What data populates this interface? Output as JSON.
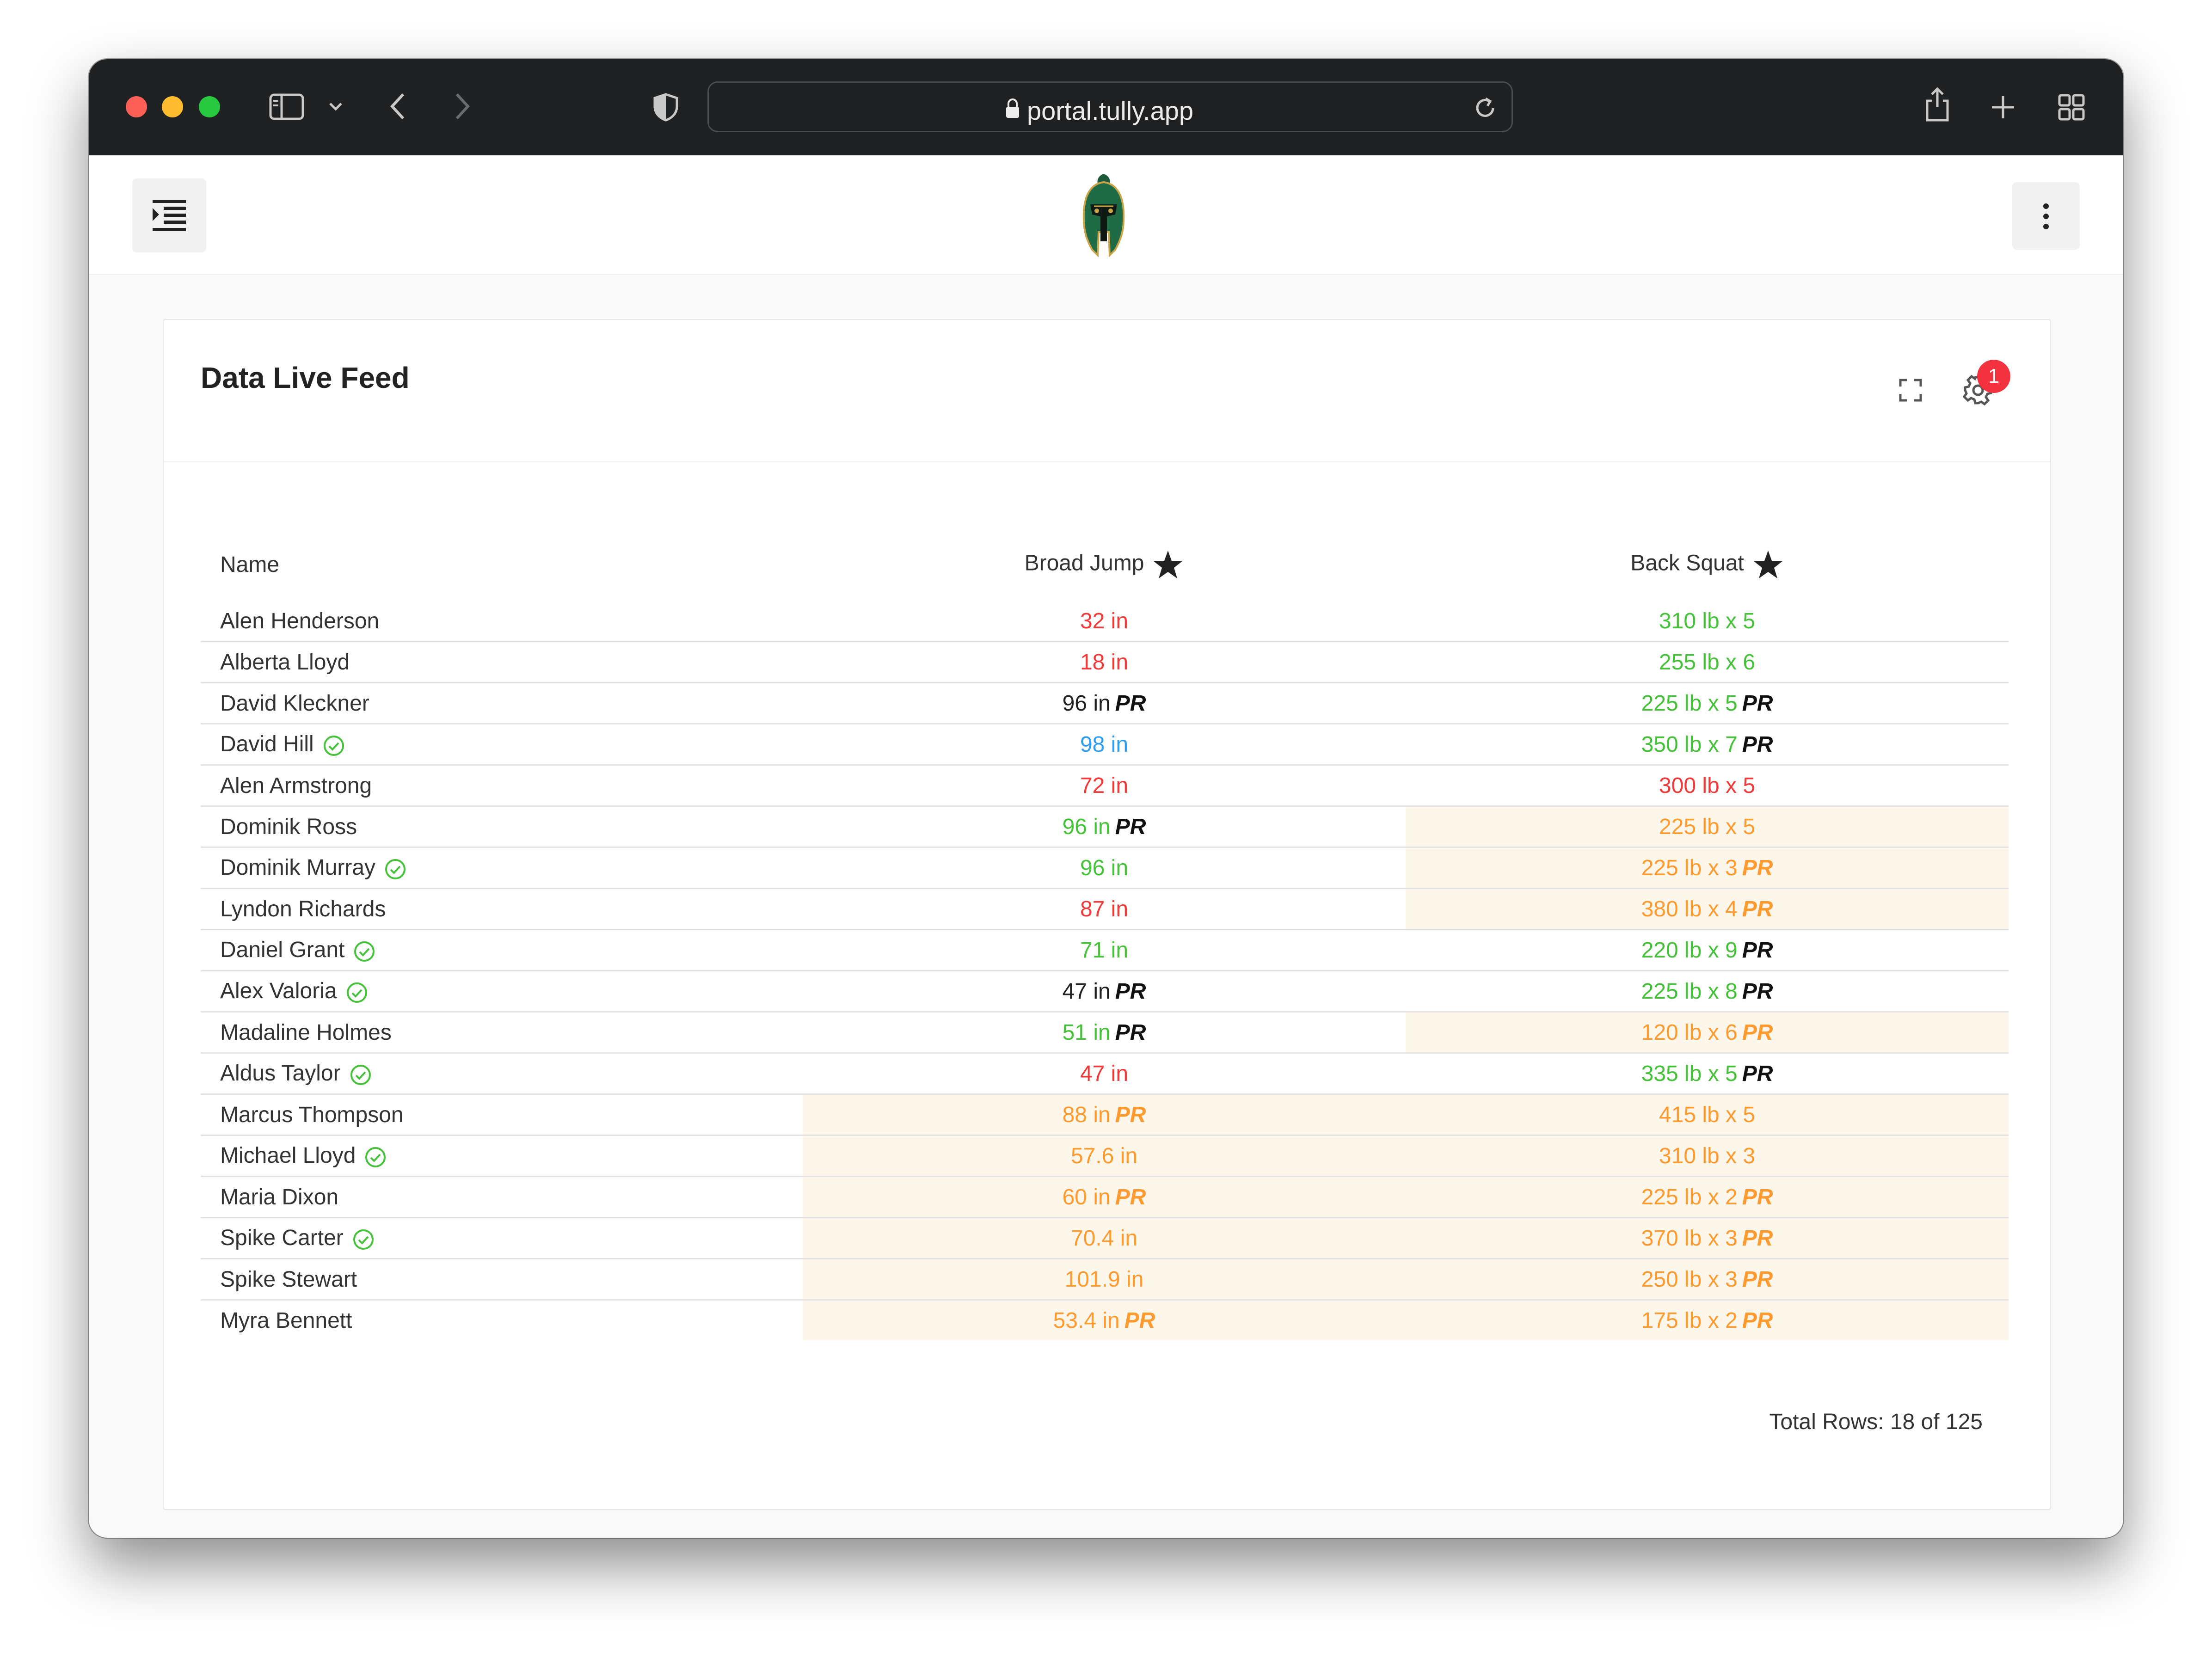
{
  "browser": {
    "url": "portal.tully.app"
  },
  "card": {
    "title": "Data Live Feed",
    "notification_count": "1",
    "total_rows_label": "Total Rows: 18 of 125"
  },
  "table": {
    "columns": [
      "Name",
      "Broad Jump",
      "Back Squat"
    ],
    "rows": [
      {
        "name": "Alen Henderson",
        "verified": false,
        "bj": {
          "text": "32 in",
          "color": "red",
          "pr": false,
          "hl": false
        },
        "bs": {
          "text": "310 lb x 5",
          "color": "green",
          "pr": false,
          "hl": false
        }
      },
      {
        "name": "Alberta Lloyd",
        "verified": false,
        "bj": {
          "text": "18 in",
          "color": "red",
          "pr": false,
          "hl": false
        },
        "bs": {
          "text": "255 lb x 6",
          "color": "green",
          "pr": false,
          "hl": false
        }
      },
      {
        "name": "David Kleckner",
        "verified": false,
        "bj": {
          "text": "96 in",
          "color": "black",
          "pr": true,
          "hl": false
        },
        "bs": {
          "text": "225 lb x 5",
          "color": "green",
          "pr": true,
          "hl": false
        }
      },
      {
        "name": "David Hill",
        "verified": true,
        "bj": {
          "text": "98 in",
          "color": "blue",
          "pr": false,
          "hl": false
        },
        "bs": {
          "text": "350 lb x 7",
          "color": "green",
          "pr": true,
          "hl": false
        }
      },
      {
        "name": "Alen Armstrong",
        "verified": false,
        "bj": {
          "text": "72 in",
          "color": "red",
          "pr": false,
          "hl": false
        },
        "bs": {
          "text": "300 lb x 5",
          "color": "red",
          "pr": false,
          "hl": false
        }
      },
      {
        "name": "Dominik Ross",
        "verified": false,
        "bj": {
          "text": "96 in",
          "color": "green",
          "pr": true,
          "hl": false
        },
        "bs": {
          "text": "225 lb x 5",
          "color": "orange",
          "pr": false,
          "hl": true
        }
      },
      {
        "name": "Dominik Murray",
        "verified": true,
        "bj": {
          "text": "96 in",
          "color": "green",
          "pr": false,
          "hl": false
        },
        "bs": {
          "text": "225 lb x 3",
          "color": "orange",
          "pr": true,
          "hl": true
        }
      },
      {
        "name": "Lyndon Richards",
        "verified": false,
        "bj": {
          "text": "87 in",
          "color": "red",
          "pr": false,
          "hl": false
        },
        "bs": {
          "text": "380 lb x 4",
          "color": "orange",
          "pr": true,
          "hl": true
        }
      },
      {
        "name": "Daniel Grant",
        "verified": true,
        "bj": {
          "text": "71 in",
          "color": "green",
          "pr": false,
          "hl": false
        },
        "bs": {
          "text": "220 lb x 9",
          "color": "green",
          "pr": true,
          "hl": false
        }
      },
      {
        "name": "Alex Valoria",
        "verified": true,
        "bj": {
          "text": "47 in",
          "color": "black",
          "pr": true,
          "hl": false
        },
        "bs": {
          "text": "225 lb x 8",
          "color": "green",
          "pr": true,
          "hl": false
        }
      },
      {
        "name": "Madaline Holmes",
        "verified": false,
        "bj": {
          "text": "51 in",
          "color": "green",
          "pr": true,
          "hl": false
        },
        "bs": {
          "text": "120 lb x 6",
          "color": "orange",
          "pr": true,
          "hl": true
        }
      },
      {
        "name": "Aldus Taylor",
        "verified": true,
        "bj": {
          "text": "47 in",
          "color": "red",
          "pr": false,
          "hl": false
        },
        "bs": {
          "text": "335 lb x 5",
          "color": "green",
          "pr": true,
          "hl": false
        }
      },
      {
        "name": "Marcus Thompson",
        "verified": false,
        "bj": {
          "text": "88 in",
          "color": "orange",
          "pr": true,
          "hl": true
        },
        "bs": {
          "text": "415 lb x 5",
          "color": "orange",
          "pr": false,
          "hl": true
        }
      },
      {
        "name": "Michael Lloyd",
        "verified": true,
        "bj": {
          "text": "57.6 in",
          "color": "orange",
          "pr": false,
          "hl": true
        },
        "bs": {
          "text": "310 lb x 3",
          "color": "orange",
          "pr": false,
          "hl": true
        }
      },
      {
        "name": "Maria Dixon",
        "verified": false,
        "bj": {
          "text": "60 in",
          "color": "orange",
          "pr": true,
          "hl": true
        },
        "bs": {
          "text": "225 lb x 2",
          "color": "orange",
          "pr": true,
          "hl": true
        }
      },
      {
        "name": "Spike Carter",
        "verified": true,
        "bj": {
          "text": "70.4 in",
          "color": "orange",
          "pr": false,
          "hl": true
        },
        "bs": {
          "text": "370 lb x 3",
          "color": "orange",
          "pr": true,
          "hl": true
        }
      },
      {
        "name": "Spike Stewart",
        "verified": false,
        "bj": {
          "text": "101.9 in",
          "color": "orange",
          "pr": false,
          "hl": true
        },
        "bs": {
          "text": "250 lb x 3",
          "color": "orange",
          "pr": true,
          "hl": true
        }
      },
      {
        "name": "Myra Bennett",
        "verified": false,
        "bj": {
          "text": "53.4 in",
          "color": "orange",
          "pr": true,
          "hl": true
        },
        "bs": {
          "text": "175 lb x 2",
          "color": "orange",
          "pr": true,
          "hl": true
        }
      }
    ],
    "pr_label": "PR"
  },
  "icons": {
    "menu": "indent-menu-icon",
    "more": "vertical-dots-icon",
    "fullscreen": "fullscreen-icon",
    "settings": "gear-icon",
    "star": "star-icon",
    "check": "check-circle-icon",
    "logo": "spartan-helmet-logo"
  },
  "colors": {
    "red": "#f03a3a",
    "green": "#45c23a",
    "blue": "#2e9cef",
    "orange": "#ff9a2e",
    "highlight": "#fdf6eb",
    "badge": "#f2323f"
  }
}
